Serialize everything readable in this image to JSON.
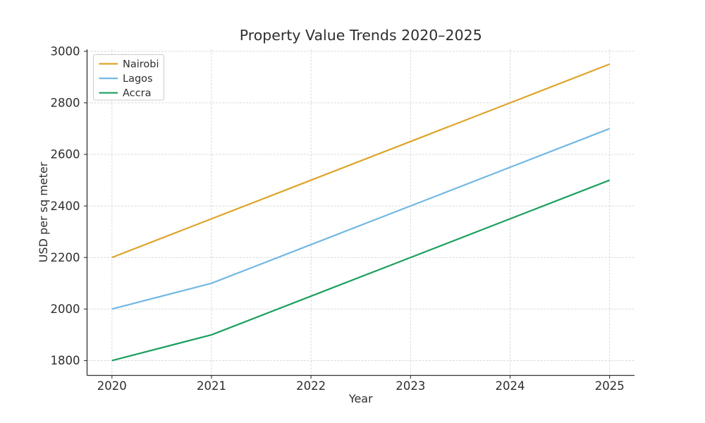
{
  "chart_data": {
    "type": "line",
    "title": "Property Value Trends 2020–2025",
    "xlabel": "Year",
    "ylabel": "USD per sq meter",
    "x": [
      2020,
      2021,
      2022,
      2023,
      2024,
      2025
    ],
    "series": [
      {
        "name": "Nairobi",
        "color": "#DFA32A",
        "values": [
          2200,
          2350,
          2500,
          2650,
          2800,
          2950
        ]
      },
      {
        "name": "Lagos",
        "color": "#74B8E4",
        "values": [
          2000,
          2100,
          2250,
          2400,
          2550,
          2700
        ]
      },
      {
        "name": "Accra",
        "color": "#1BA05F",
        "values": [
          1800,
          1900,
          2050,
          2200,
          2350,
          2500
        ]
      }
    ],
    "xticks": [
      2020,
      2021,
      2022,
      2023,
      2024,
      2025
    ],
    "yticks": [
      1800,
      2000,
      2200,
      2400,
      2600,
      2800,
      3000
    ],
    "xlim": [
      2019.75,
      2025.25
    ],
    "ylim": [
      1742.5,
      3007.5
    ],
    "grid": true,
    "legend": {
      "position": "upper-left",
      "entries": [
        "Nairobi",
        "Lagos",
        "Accra"
      ]
    },
    "colors": {
      "background": "#ffffff",
      "grid": "#d9d9d9",
      "spine": "#333333",
      "text": "#2e2e2e",
      "legend_border": "#cccccc",
      "legend_fill": "#ffffff"
    }
  }
}
